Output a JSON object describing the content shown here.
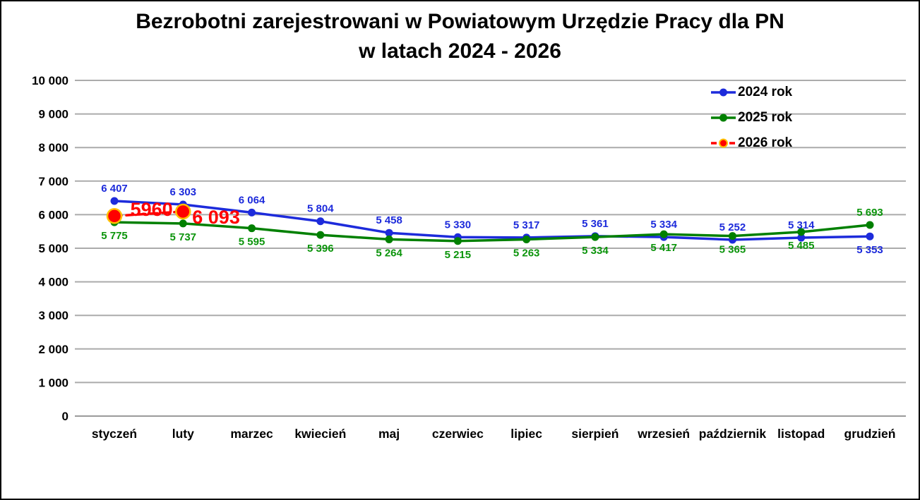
{
  "title": {
    "line1": "Bezrobotni zarejestrowani w Powiatowym Urzędzie Pracy dla PN",
    "line2": "w latach 2024 - 2026"
  },
  "legend": {
    "position": "inside-top-right",
    "items": [
      {
        "label": "2024 rok",
        "color": "#1D2BDB",
        "line_style": "solid",
        "marker_ring": null
      },
      {
        "label": "2025 rok",
        "color": "#008000",
        "line_style": "solid",
        "marker_ring": null
      },
      {
        "label": "2026 rok",
        "color": "#FF0000",
        "line_style": "dashed",
        "marker_ring": "#FFC000"
      }
    ]
  },
  "chart_data": {
    "type": "line",
    "title": "Bezrobotni zarejestrowani w Powiatowym Urzędzie Pracy dla PN w latach 2024 - 2026",
    "categories": [
      "styczeń",
      "luty",
      "marzec",
      "kwiecień",
      "maj",
      "czerwiec",
      "lipiec",
      "sierpień",
      "wrzesień",
      "październik",
      "listopad",
      "grudzień"
    ],
    "xlabel": "",
    "ylabel": "",
    "ylim": [
      0,
      10000
    ],
    "y_tick_step": 1000,
    "y_tick_labels": [
      "0",
      "1 000",
      "2 000",
      "3 000",
      "4 000",
      "5 000",
      "6 000",
      "7 000",
      "8 000",
      "9 000",
      "10 000"
    ],
    "grid": "horizontal",
    "legend_position": "inside-top-right",
    "series": [
      {
        "name": "2024 rok",
        "color": "#1D2BDB",
        "label_color": "#1D2BDB",
        "line_style": "solid",
        "marker": "circle",
        "values": [
          6407,
          6303,
          6064,
          5804,
          5458,
          5330,
          5317,
          5361,
          5334,
          5252,
          5314,
          5353
        ],
        "labels": [
          "6 407",
          "6 303",
          "6 064",
          "5 804",
          "5 458",
          "5 330",
          "5 317",
          "5 361",
          "5 334",
          "5 252",
          "5 314",
          "5 353"
        ],
        "label_pos": [
          "above",
          "above",
          "above",
          "above",
          "above",
          "above",
          "above",
          "above",
          "above",
          "above",
          "above",
          "below"
        ]
      },
      {
        "name": "2025 rok",
        "color": "#008000",
        "label_color": "#0B940B",
        "line_style": "solid",
        "marker": "circle",
        "values": [
          5775,
          5737,
          5595,
          5396,
          5264,
          5215,
          5263,
          5334,
          5417,
          5365,
          5485,
          5693
        ],
        "labels": [
          "5 775",
          "5 737",
          "5 595",
          "5 396",
          "5 264",
          "5 215",
          "5 263",
          "5 334",
          "5 417",
          "5 365",
          "5 485",
          "5 693"
        ],
        "label_pos": [
          "below",
          "below",
          "below",
          "below",
          "below",
          "below",
          "below",
          "below",
          "below",
          "below",
          "below",
          "above"
        ]
      },
      {
        "name": "2026 rok",
        "color": "#FF0000",
        "label_color": "#FF0000",
        "line_style": "dashed",
        "marker": "circle-ring",
        "marker_ring": "#FFC000",
        "values": [
          5960,
          6093,
          null,
          null,
          null,
          null,
          null,
          null,
          null,
          null,
          null,
          null
        ],
        "labels": [
          "5960",
          "6 093"
        ],
        "label_pos": [
          "mid-line",
          "right"
        ]
      }
    ],
    "colors": {
      "gridline": "#ABABAB",
      "zero_line": "#9B9B9B",
      "background": "#FFFFFF",
      "border": "#000000"
    }
  }
}
